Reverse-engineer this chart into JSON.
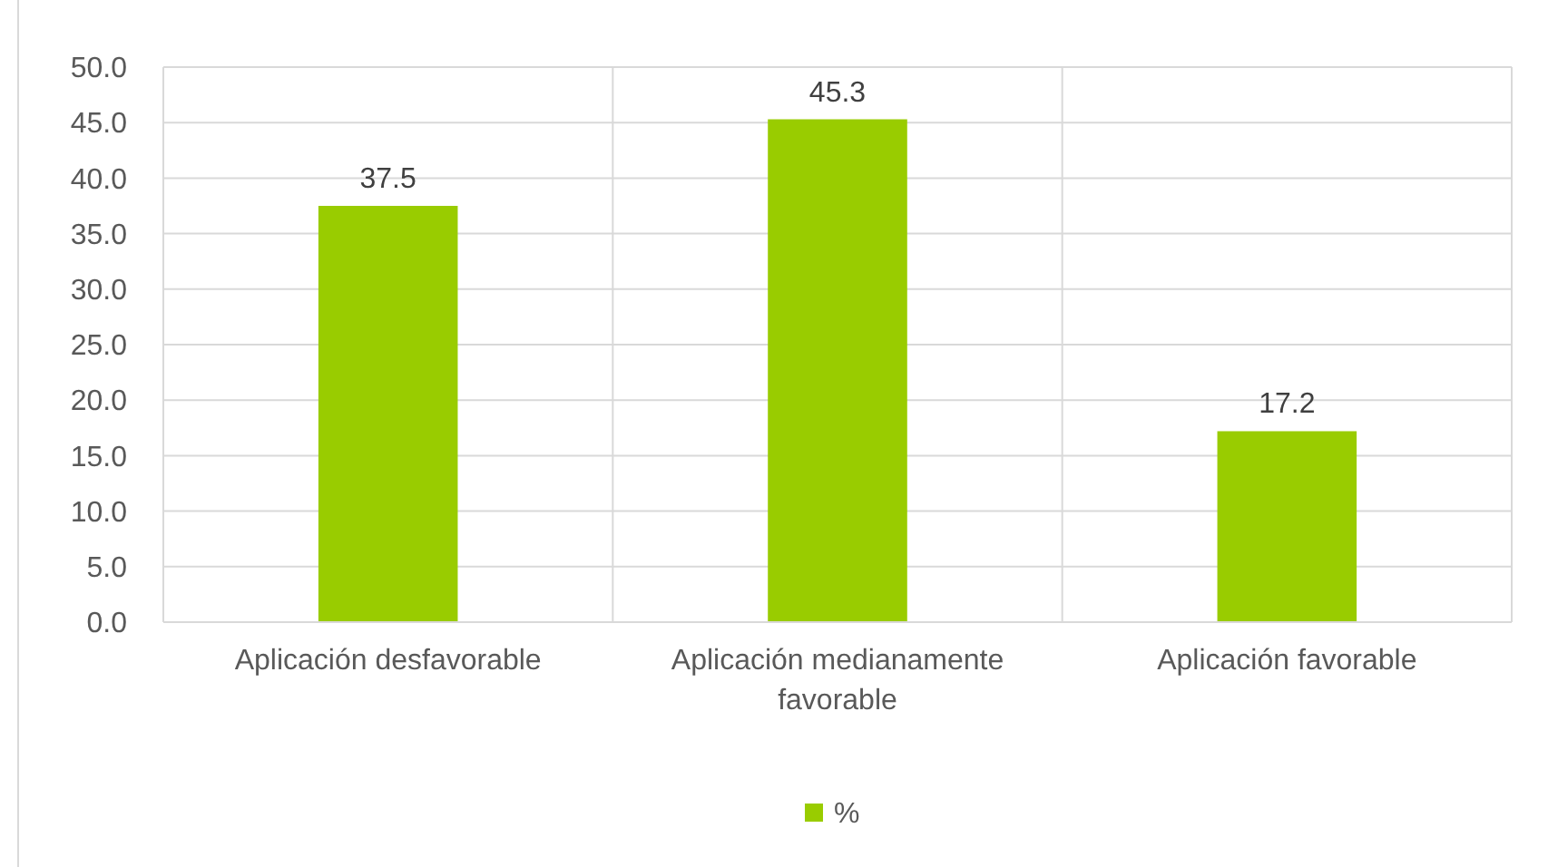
{
  "chart_data": {
    "type": "bar",
    "categories": [
      "Aplicación desfavorable",
      "Aplicación medianamente favorable",
      "Aplicación favorable"
    ],
    "series": [
      {
        "name": "%",
        "color": "#99cc00",
        "values": [
          37.5,
          45.3,
          17.2
        ]
      }
    ],
    "ylim": [
      0,
      50
    ],
    "yticks": [
      {
        "value": 0,
        "label": "0.0"
      },
      {
        "value": 5,
        "label": "5.0"
      },
      {
        "value": 10,
        "label": "10.0"
      },
      {
        "value": 15,
        "label": "15.0"
      },
      {
        "value": 20,
        "label": "20.0"
      },
      {
        "value": 25,
        "label": "25.0"
      },
      {
        "value": 30,
        "label": "30.0"
      },
      {
        "value": 35,
        "label": "35.0"
      },
      {
        "value": 40,
        "label": "40.0"
      },
      {
        "value": 45,
        "label": "45.0"
      },
      {
        "value": 50,
        "label": "50.0"
      }
    ],
    "grid": true,
    "legend": "bottom",
    "data_labels": true
  }
}
